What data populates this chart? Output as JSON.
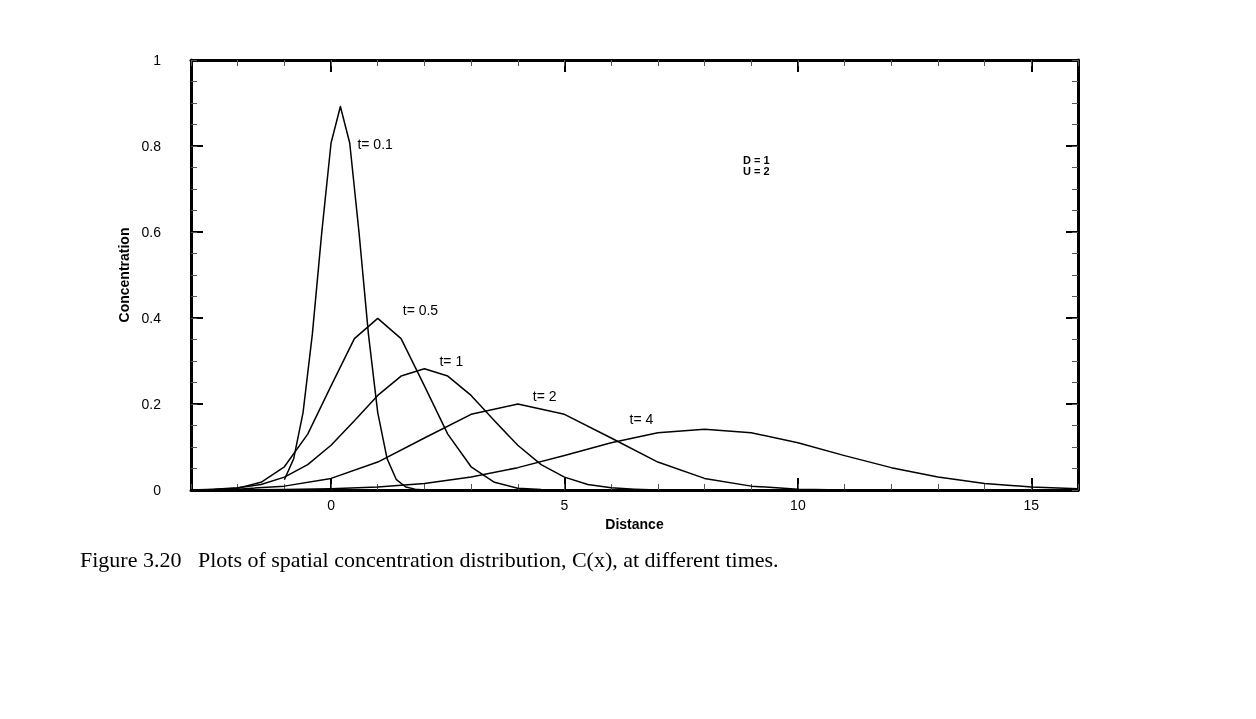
{
  "chart_data": {
    "type": "line",
    "xlabel": "Distance",
    "ylabel": "Concentration",
    "xlim": [
      -3,
      16
    ],
    "xticks": [
      0,
      5,
      10,
      15
    ],
    "ylim": [
      0,
      1
    ],
    "yticks": [
      0,
      0.2,
      0.4,
      0.6,
      0.8,
      1
    ],
    "grid": false,
    "legend": false,
    "marker": "none",
    "line_style": "solid",
    "series": [
      {
        "name": "t= 0.1",
        "color": "#000000",
        "x": [
          -1,
          -0.8,
          -0.6,
          -0.4,
          -0.2,
          0,
          0.2,
          0.4,
          0.6,
          0.8,
          1,
          1.2,
          1.4,
          1.6,
          1.8,
          2
        ],
        "values": [
          0.024,
          0.073,
          0.18,
          0.363,
          0.598,
          0.807,
          0.892,
          0.807,
          0.598,
          0.363,
          0.18,
          0.073,
          0.024,
          0.007,
          0.002,
          0
        ]
      },
      {
        "name": "t= 0.5",
        "color": "#000000",
        "x": [
          -3,
          -2.5,
          -2,
          -1.5,
          -1,
          -0.5,
          0,
          0.5,
          1,
          1.5,
          2,
          2.5,
          3,
          3.5,
          4,
          4.5,
          5
        ],
        "values": [
          0,
          0.001,
          0.004,
          0.018,
          0.054,
          0.13,
          0.242,
          0.352,
          0.399,
          0.352,
          0.242,
          0.13,
          0.054,
          0.018,
          0.004,
          0.001,
          0
        ]
      },
      {
        "name": "t= 1",
        "color": "#000000",
        "x": [
          -3,
          -2.5,
          -2,
          -1.5,
          -1,
          -0.5,
          0,
          0.5,
          1,
          1.5,
          2,
          2.5,
          3,
          3.5,
          4,
          4.5,
          5,
          5.5,
          6,
          6.5,
          7
        ],
        "values": [
          0,
          0.002,
          0.005,
          0.013,
          0.03,
          0.059,
          0.104,
          0.161,
          0.22,
          0.265,
          0.282,
          0.265,
          0.22,
          0.161,
          0.104,
          0.059,
          0.03,
          0.013,
          0.005,
          0.002,
          0
        ]
      },
      {
        "name": "t= 2",
        "color": "#000000",
        "x": [
          -3,
          -2,
          -1,
          0,
          1,
          2,
          3,
          4,
          5,
          6,
          7,
          8,
          9,
          10,
          11,
          12
        ],
        "values": [
          0,
          0.002,
          0.009,
          0.027,
          0.065,
          0.121,
          0.176,
          0.2,
          0.176,
          0.121,
          0.065,
          0.027,
          0.009,
          0.002,
          0,
          0
        ]
      },
      {
        "name": "t= 4",
        "color": "#000000",
        "x": [
          -3,
          -2,
          -1,
          0,
          1,
          2,
          3,
          4,
          5,
          6,
          7,
          8,
          9,
          10,
          11,
          12,
          13,
          14,
          15,
          16
        ],
        "values": [
          0,
          0,
          0.001,
          0.003,
          0.007,
          0.015,
          0.03,
          0.052,
          0.08,
          0.11,
          0.133,
          0.141,
          0.133,
          0.11,
          0.08,
          0.052,
          0.03,
          0.015,
          0.007,
          0.003
        ]
      }
    ],
    "annotations": [
      "D = 1",
      "U = 2",
      "Figure 3.20   Plots of spatial concentration distribution, C(x), at different times."
    ]
  }
}
